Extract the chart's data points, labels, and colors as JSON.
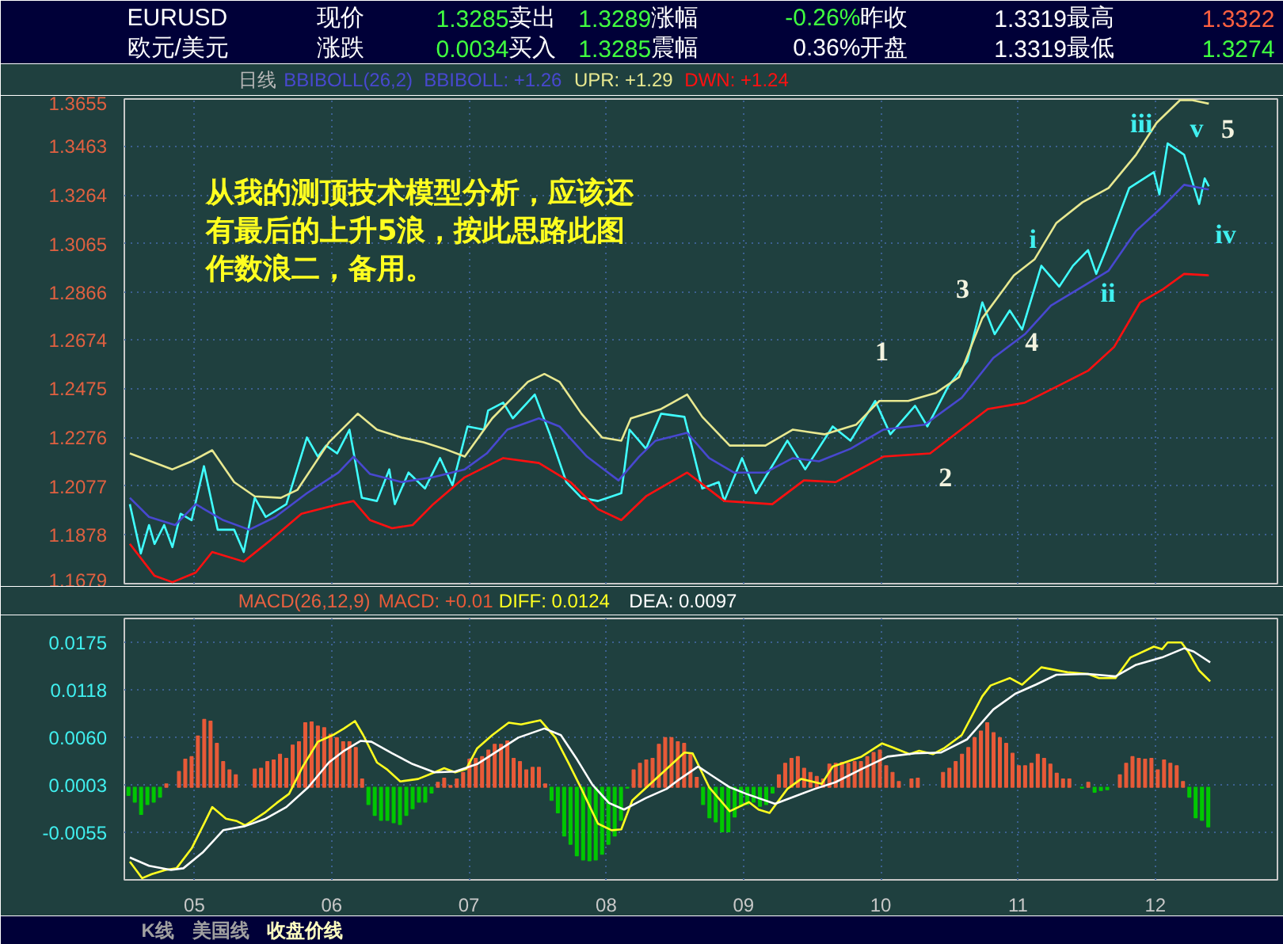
{
  "chart_data": [
    {
      "type": "other",
      "annotations": [
        "EURUSD",
        "现价",
        "1.3285",
        "卖出",
        "1.3289",
        "涨幅",
        "-0.26%",
        "昨收",
        "1.3319",
        "最高",
        "1.3322",
        "欧元/美元",
        "涨跌",
        "0.0034",
        "买入",
        "1.3285",
        "震幅",
        "0.36%",
        "开盘",
        "1.3319",
        "最低",
        "1.3274"
      ]
    },
    {
      "type": "line",
      "title": "日线",
      "subtitle": "BBIBOLL(26,2)",
      "grid": true,
      "tick_labels": "y",
      "xlim": [
        4.49,
        12.89
      ],
      "xticks": [
        {
          "value": 5,
          "label": null
        },
        {
          "value": 6,
          "label": null
        },
        {
          "value": 7,
          "label": null
        },
        {
          "value": 8,
          "label": null
        },
        {
          "value": 9,
          "label": null
        },
        {
          "value": 10,
          "label": null
        },
        {
          "value": 11,
          "label": null
        },
        {
          "value": 12,
          "label": null
        }
      ],
      "ylim": [
        1.1679,
        1.3655
      ],
      "yticks": [
        1.3655,
        1.3463,
        1.3264,
        1.3065,
        1.2866,
        1.2674,
        1.2475,
        1.2276,
        1.2077,
        1.1878,
        1.1679
      ],
      "series": [
        {
          "color": "#40ffff",
          "x": [
            4.53,
            4.61,
            4.67,
            4.71,
            4.78,
            4.84,
            4.9,
            4.98,
            5.07,
            5.17,
            5.29,
            5.36,
            5.44,
            5.52,
            5.67,
            5.82,
            5.9,
            5.96,
            6.04,
            6.13,
            6.22,
            6.33,
            6.42,
            6.46,
            6.56,
            6.68,
            6.79,
            6.88,
            6.99,
            7.11,
            7.14,
            7.25,
            7.32,
            7.48,
            7.59,
            7.71,
            7.82,
            7.94,
            8.11,
            8.17,
            8.29,
            8.4,
            8.57,
            8.7,
            8.82,
            8.86,
            8.99,
            9.09,
            9.32,
            9.45,
            9.65,
            9.78,
            9.96,
            10.07,
            10.25,
            10.34,
            10.49,
            10.63,
            10.74,
            10.83,
            10.94,
            11.03,
            11.17,
            11.3,
            11.4,
            11.51,
            11.57,
            11.64,
            11.81,
            11.99,
            12.03,
            12.09,
            12.21,
            12.32,
            12.36,
            12.39
          ],
          "values": [
            1.2003,
            1.1802,
            1.1918,
            1.1841,
            1.1918,
            1.1828,
            1.1964,
            1.1938,
            1.2158,
            1.1899,
            1.1899,
            1.1808,
            1.2029,
            1.1951,
            1.2003,
            1.2275,
            1.2197,
            1.2242,
            1.221,
            1.2307,
            1.2029,
            1.2016,
            1.2145,
            1.2003,
            1.2132,
            1.2067,
            1.2191,
            1.208,
            1.232,
            1.2307,
            1.2385,
            1.2417,
            1.2353,
            1.245,
            1.2288,
            1.2093,
            1.2029,
            1.2016,
            1.2048,
            1.2307,
            1.2229,
            1.2372,
            1.2359,
            1.2067,
            1.2093,
            1.2016,
            1.2191,
            1.2048,
            1.2262,
            1.2145,
            1.232,
            1.2262,
            1.2424,
            1.2288,
            1.2404,
            1.232,
            1.2482,
            1.2586,
            1.2826,
            1.2696,
            1.2793,
            1.2715,
            1.2975,
            1.289,
            1.2975,
            1.3039,
            1.2942,
            1.3039,
            1.3292,
            1.3357,
            1.3266,
            1.3474,
            1.3428,
            1.3227,
            1.3331,
            1.3299
          ]
        },
        {
          "name": "BBIBOLL: +1.26",
          "color": "#4848d0",
          "x": [
            4.53,
            4.67,
            4.86,
            5.01,
            5.21,
            5.4,
            5.59,
            5.82,
            6.05,
            6.16,
            6.28,
            6.51,
            6.74,
            6.97,
            7.13,
            7.28,
            7.51,
            7.66,
            7.86,
            8.09,
            8.24,
            8.36,
            8.59,
            8.75,
            8.93,
            9.16,
            9.36,
            9.55,
            9.78,
            10.02,
            10.32,
            10.59,
            10.82,
            11.05,
            11.24,
            11.47,
            11.66,
            11.86,
            12.05,
            12.21,
            12.39
          ],
          "values": [
            1.2029,
            1.1951,
            1.1918,
            1.2003,
            1.1938,
            1.1899,
            1.1951,
            1.2048,
            1.2132,
            1.2197,
            1.2126,
            1.2093,
            1.2113,
            1.2145,
            1.221,
            1.2307,
            1.2353,
            1.232,
            1.2197,
            1.21,
            1.2197,
            1.2262,
            1.2294,
            1.2191,
            1.2132,
            1.2132,
            1.2191,
            1.2178,
            1.2229,
            1.2307,
            1.2327,
            1.2437,
            1.2599,
            1.2696,
            1.2813,
            1.289,
            1.2955,
            1.3117,
            1.3214,
            1.3305,
            1.3286
          ]
        },
        {
          "name": "UPR: +1.29",
          "color": "#e8e890",
          "x": [
            4.53,
            4.84,
            4.98,
            5.13,
            5.29,
            5.44,
            5.63,
            5.75,
            5.98,
            6.19,
            6.33,
            6.51,
            6.67,
            6.82,
            6.97,
            7.17,
            7.43,
            7.55,
            7.66,
            7.82,
            7.97,
            8.11,
            8.18,
            8.4,
            8.59,
            8.7,
            8.9,
            9.16,
            9.36,
            9.59,
            9.82,
            9.99,
            10.2,
            10.4,
            10.57,
            10.74,
            10.97,
            11.12,
            11.28,
            11.47,
            11.66,
            11.86,
            12.01,
            12.18,
            12.27,
            12.39
          ],
          "values": [
            1.221,
            1.2145,
            1.2178,
            1.2223,
            1.2093,
            1.2035,
            1.2029,
            1.2061,
            1.2255,
            1.2372,
            1.2307,
            1.2275,
            1.2255,
            1.2229,
            1.2197,
            1.2353,
            1.2502,
            1.2534,
            1.2502,
            1.2372,
            1.2275,
            1.2262,
            1.2353,
            1.2391,
            1.245,
            1.2359,
            1.2242,
            1.2242,
            1.2307,
            1.2288,
            1.2327,
            1.2424,
            1.2424,
            1.2456,
            1.2521,
            1.2761,
            1.2936,
            1.3001,
            1.315,
            1.3234,
            1.3292,
            1.3428,
            1.3558,
            1.365,
            1.365,
            1.3636
          ]
        },
        {
          "name": "DWN: +1.24",
          "color": "#ff1010",
          "x": [
            4.53,
            4.71,
            4.84,
            5.01,
            5.13,
            5.36,
            5.55,
            5.78,
            6.05,
            6.16,
            6.28,
            6.44,
            6.59,
            6.74,
            6.97,
            7.25,
            7.51,
            7.74,
            7.94,
            8.11,
            8.29,
            8.59,
            8.86,
            9.21,
            9.44,
            9.67,
            10.02,
            10.36,
            10.78,
            11.05,
            11.28,
            11.51,
            11.7,
            11.89,
            12.05,
            12.21,
            12.39
          ],
          "values": [
            1.1841,
            1.1711,
            1.1685,
            1.1724,
            1.1808,
            1.1769,
            1.1854,
            1.1964,
            1.2003,
            1.2016,
            1.1938,
            1.1905,
            1.1918,
            1.2003,
            1.2113,
            1.2191,
            1.2171,
            1.2093,
            1.1983,
            1.1938,
            1.2035,
            1.2132,
            1.2016,
            1.2003,
            1.21,
            1.2093,
            1.2197,
            1.221,
            1.2391,
            1.2417,
            1.2482,
            1.2547,
            1.2644,
            1.2826,
            1.2877,
            1.2942,
            1.2936
          ]
        }
      ],
      "annotations": [
        "从我的测顶技术模型分析，应该还有最后的上升5浪，按此思路此图作数浪二，备用。",
        "1",
        "2",
        "3",
        "4",
        "5",
        "i",
        "ii",
        "iii",
        "iv",
        "v"
      ]
    },
    {
      "type": "bar",
      "title": "MACD(26,12,9)",
      "grid": true,
      "xlim": [
        4.49,
        12.89
      ],
      "xticks": [
        {
          "value": 5,
          "label": "05"
        },
        {
          "value": 6,
          "label": "06"
        },
        {
          "value": 7,
          "label": "07"
        },
        {
          "value": 8,
          "label": "08"
        },
        {
          "value": 9,
          "label": "09"
        },
        {
          "value": 10,
          "label": "10"
        },
        {
          "value": 11,
          "label": "11"
        },
        {
          "value": 12,
          "label": "12"
        }
      ],
      "ylim": [
        -0.0112,
        0.0204
      ],
      "yticks": [
        0.0175,
        0.0118,
        {
          "value": 0.006,
          "label": "0.0060"
        },
        0.0003,
        -0.0055
      ],
      "x": [
        4.52,
        4.566,
        4.612,
        4.658,
        4.704,
        4.75,
        4.796,
        4.842,
        4.888,
        4.934,
        4.98,
        5.026,
        5.072,
        5.118,
        5.164,
        5.21,
        5.256,
        5.302,
        5.348,
        5.394,
        5.44,
        5.486,
        5.532,
        5.578,
        5.624,
        5.67,
        5.716,
        5.762,
        5.808,
        5.854,
        5.9,
        5.946,
        5.992,
        6.038,
        6.084,
        6.13,
        6.176,
        6.222,
        6.268,
        6.314,
        6.36,
        6.406,
        6.452,
        6.498,
        6.544,
        6.59,
        6.636,
        6.682,
        6.728,
        6.774,
        6.82,
        6.866,
        6.912,
        6.958,
        7.004,
        7.05,
        7.096,
        7.142,
        7.188,
        7.234,
        7.28,
        7.326,
        7.372,
        7.418,
        7.464,
        7.51,
        7.556,
        7.602,
        7.648,
        7.694,
        7.74,
        7.786,
        7.832,
        7.878,
        7.924,
        7.97,
        8.016,
        8.062,
        8.108,
        8.154,
        8.2,
        8.246,
        8.292,
        8.338,
        8.384,
        8.43,
        8.476,
        8.522,
        8.568,
        8.614,
        8.66,
        8.706,
        8.752,
        8.798,
        8.844,
        8.89,
        8.936,
        8.982,
        9.028,
        9.074,
        9.12,
        9.166,
        9.212,
        9.258,
        9.304,
        9.35,
        9.396,
        9.442,
        9.488,
        9.534,
        9.58,
        9.626,
        9.672,
        9.718,
        9.764,
        9.81,
        9.856,
        9.902,
        9.948,
        9.994,
        10.04,
        10.086,
        10.132,
        10.178,
        10.224,
        10.27,
        10.316,
        10.362,
        10.408,
        10.454,
        10.5,
        10.546,
        10.592,
        10.638,
        10.684,
        10.73,
        10.776,
        10.822,
        10.868,
        10.914,
        10.96,
        11.006,
        11.052,
        11.098,
        11.144,
        11.19,
        11.236,
        11.282,
        11.328,
        11.374,
        11.42,
        11.466,
        11.512,
        11.558,
        11.604,
        11.65,
        11.696,
        11.742,
        11.788,
        11.834,
        11.88,
        11.926,
        11.972,
        12.018,
        12.064,
        12.11,
        12.156,
        12.202,
        12.248,
        12.294,
        12.34,
        12.386
      ],
      "series": [
        {
          "name": "MACD: +0.01",
          "color": "#e85a38",
          "values": [
            null,
            null,
            null,
            null,
            null,
            null,
            0.0004,
            null,
            0.0019,
            0.0034,
            0.0037,
            0.0062,
            0.0082,
            0.008,
            0.0053,
            0.0031,
            0.0021,
            0.0015,
            null,
            null,
            0.0022,
            0.0023,
            0.0031,
            0.0033,
            0.004,
            0.0035,
            0.0051,
            0.0055,
            0.0078,
            0.0079,
            0.0074,
            0.0072,
            0.0064,
            0.006,
            0.0055,
            0.0055,
            0.0048,
            0.001,
            null,
            null,
            null,
            null,
            null,
            null,
            null,
            null,
            null,
            null,
            null,
            0.0006,
            0.0011,
            0.0002,
            0.001,
            0.0018,
            0.0034,
            0.0035,
            0.0037,
            0.0045,
            0.0052,
            0.0052,
            0.0056,
            0.0035,
            0.0031,
            0.0021,
            0.0024,
            0.0024,
            0.0004,
            null,
            null,
            null,
            null,
            null,
            null,
            null,
            null,
            null,
            null,
            null,
            null,
            null,
            0.0021,
            0.0029,
            0.0033,
            0.0035,
            0.0052,
            0.006,
            0.006,
            0.0055,
            0.0053,
            0.004,
            0.0012,
            null,
            null,
            null,
            null,
            null,
            null,
            null,
            null,
            null,
            null,
            null,
            null,
            0.0015,
            0.0029,
            0.0035,
            0.0037,
            0.0023,
            0.0018,
            0.0013,
            0.001,
            0.0028,
            0.0029,
            0.003,
            0.0029,
            0.0031,
            0.0031,
            0.0037,
            0.0042,
            0.0045,
            0.0026,
            0.0018,
            0.0007,
            null,
            0.001,
            0.0011,
            null,
            null,
            null,
            0.0018,
            0.0023,
            0.0031,
            0.004,
            0.0048,
            0.006,
            0.0068,
            0.0078,
            0.0066,
            0.006,
            0.0053,
            0.0041,
            0.0026,
            0.0026,
            0.0029,
            0.004,
            0.0035,
            0.0028,
            0.0017,
            0.001,
            0.001,
            null,
            null,
            0.0006,
            null,
            null,
            null,
            null,
            0.0015,
            0.0029,
            0.0037,
            0.0035,
            0.0034,
            0.0035,
            0.0021,
            0.0033,
            0.0029,
            0.0026,
            0.0007,
            null,
            null,
            null,
            null
          ]
        },
        {
          "color": "#00c800",
          "values": [
            -0.001,
            -0.0018,
            -0.0033,
            -0.0021,
            -0.0018,
            -0.0012,
            null,
            null,
            null,
            null,
            null,
            null,
            null,
            null,
            null,
            null,
            null,
            null,
            null,
            null,
            null,
            null,
            null,
            null,
            null,
            null,
            null,
            null,
            null,
            null,
            null,
            null,
            null,
            null,
            null,
            null,
            null,
            null,
            -0.0021,
            -0.0034,
            -0.004,
            -0.004,
            -0.0043,
            -0.0045,
            -0.0034,
            -0.0026,
            -0.0018,
            -0.0018,
            -0.0007,
            null,
            null,
            null,
            null,
            null,
            null,
            null,
            null,
            null,
            null,
            null,
            null,
            null,
            null,
            null,
            null,
            null,
            null,
            -0.0016,
            -0.0031,
            -0.0059,
            -0.0069,
            -0.0083,
            -0.0088,
            -0.0089,
            -0.0088,
            -0.0081,
            -0.0069,
            -0.0059,
            -0.004,
            -0.0001,
            null,
            null,
            null,
            null,
            null,
            null,
            null,
            null,
            null,
            null,
            null,
            -0.0021,
            -0.0037,
            -0.0042,
            -0.0054,
            -0.0054,
            -0.0036,
            -0.0023,
            -0.0021,
            -0.0018,
            -0.0023,
            -0.0021,
            -0.0007,
            null,
            null,
            null,
            null,
            null,
            null,
            null,
            null,
            null,
            null,
            null,
            null,
            null,
            null,
            null,
            null,
            null,
            null,
            null,
            null,
            null,
            null,
            null,
            null,
            null,
            null,
            null,
            null,
            null,
            null,
            null,
            null,
            null,
            null,
            null,
            null,
            null,
            null,
            null,
            null,
            null,
            null,
            null,
            null,
            null,
            null,
            null,
            null,
            -0.0001,
            null,
            -0.0006,
            -0.0004,
            -0.0003,
            null,
            null,
            null,
            null,
            null,
            null,
            null,
            null,
            null,
            null,
            null,
            null,
            -0.0012,
            -0.0037,
            -0.004,
            -0.0048
          ]
        },
        {
          "name": "DIFF: 0.0124",
          "type": "line",
          "color": "#ffff20",
          "x": [
            4.53,
            4.62,
            4.69,
            4.79,
            4.87,
            4.98,
            5.08,
            5.13,
            5.23,
            5.31,
            5.37,
            5.42,
            5.52,
            5.6,
            5.69,
            5.79,
            5.9,
            6.02,
            6.09,
            6.17,
            6.23,
            6.33,
            6.4,
            6.5,
            6.63,
            6.75,
            6.82,
            6.9,
            6.98,
            7.06,
            7.17,
            7.29,
            7.38,
            7.52,
            7.63,
            7.73,
            7.82,
            7.94,
            8.04,
            8.11,
            8.19,
            8.44,
            8.57,
            8.63,
            8.75,
            8.9,
            9.04,
            9.11,
            9.19,
            9.32,
            9.42,
            9.57,
            9.65,
            9.86,
            10.01,
            10.09,
            10.21,
            10.28,
            10.38,
            10.46,
            10.59,
            10.74,
            10.8,
            10.94,
            11.03,
            11.17,
            11.36,
            11.51,
            11.59,
            11.71,
            11.82,
            11.99,
            12.05,
            12.09,
            12.19,
            12.24,
            12.32,
            12.4
          ],
          "values": [
            -0.009,
            -0.011,
            -0.0105,
            -0.01,
            -0.0098,
            -0.0074,
            -0.0041,
            -0.0024,
            -0.0038,
            -0.0041,
            -0.0046,
            -0.0041,
            -0.003,
            -0.0019,
            -0.0008,
            0.0025,
            0.0055,
            0.0064,
            0.0071,
            0.008,
            0.0063,
            0.003,
            0.0022,
            0.0007,
            0.001,
            0.0018,
            0.0023,
            0.0018,
            0.0022,
            0.0047,
            0.0063,
            0.0078,
            0.0076,
            0.0081,
            0.006,
            0.0028,
            -0.0002,
            -0.0044,
            -0.0052,
            -0.0051,
            -0.0016,
            0.0022,
            0.0042,
            0.0041,
            0.0,
            -0.0029,
            -0.0018,
            -0.0027,
            -0.0031,
            -0.0002,
            0.001,
            0.0004,
            0.0025,
            0.0037,
            0.0053,
            0.0048,
            0.004,
            0.0044,
            0.004,
            0.0047,
            0.0063,
            0.011,
            0.0123,
            0.0132,
            0.0124,
            0.0145,
            0.0139,
            0.0137,
            0.0132,
            0.0132,
            0.0157,
            0.017,
            0.0167,
            0.0175,
            0.0175,
            0.0164,
            0.0141,
            0.0128
          ]
        },
        {
          "name": "DEA: 0.0097",
          "type": "line",
          "color": "#ffffff",
          "x": [
            4.53,
            4.67,
            4.83,
            4.92,
            5.06,
            5.21,
            5.37,
            5.52,
            5.67,
            5.83,
            5.98,
            6.09,
            6.21,
            6.29,
            6.44,
            6.59,
            6.75,
            6.9,
            7.06,
            7.21,
            7.36,
            7.55,
            7.67,
            7.79,
            7.9,
            8.02,
            8.13,
            8.29,
            8.44,
            8.52,
            8.67,
            8.78,
            8.9,
            9.02,
            9.23,
            9.36,
            9.52,
            9.67,
            9.86,
            10.05,
            10.25,
            10.44,
            10.63,
            10.82,
            10.98,
            11.13,
            11.28,
            11.51,
            11.71,
            11.86,
            12.05,
            12.21,
            12.28,
            12.4
          ],
          "values": [
            -0.0085,
            -0.0095,
            -0.01,
            -0.0098,
            -0.0079,
            -0.0052,
            -0.0047,
            -0.0038,
            -0.0024,
            0.0,
            0.003,
            0.0044,
            0.0056,
            0.0055,
            0.0041,
            0.0028,
            0.0018,
            0.0019,
            0.0028,
            0.0044,
            0.006,
            0.0071,
            0.0063,
            0.0033,
            0.0003,
            -0.0019,
            -0.0027,
            -0.0013,
            -0.0002,
            0.0008,
            0.0025,
            0.0013,
            0.0,
            -0.0008,
            -0.002,
            -0.0012,
            -0.0002,
            0.0006,
            0.0022,
            0.0037,
            0.0041,
            0.0042,
            0.0058,
            0.0094,
            0.0113,
            0.0124,
            0.0136,
            0.0137,
            0.0134,
            0.0148,
            0.0157,
            0.0168,
            0.0164,
            0.0151
          ]
        }
      ]
    },
    {
      "type": "other",
      "annotations": [
        "K线",
        "美国线",
        "收盘价线"
      ]
    }
  ]
}
